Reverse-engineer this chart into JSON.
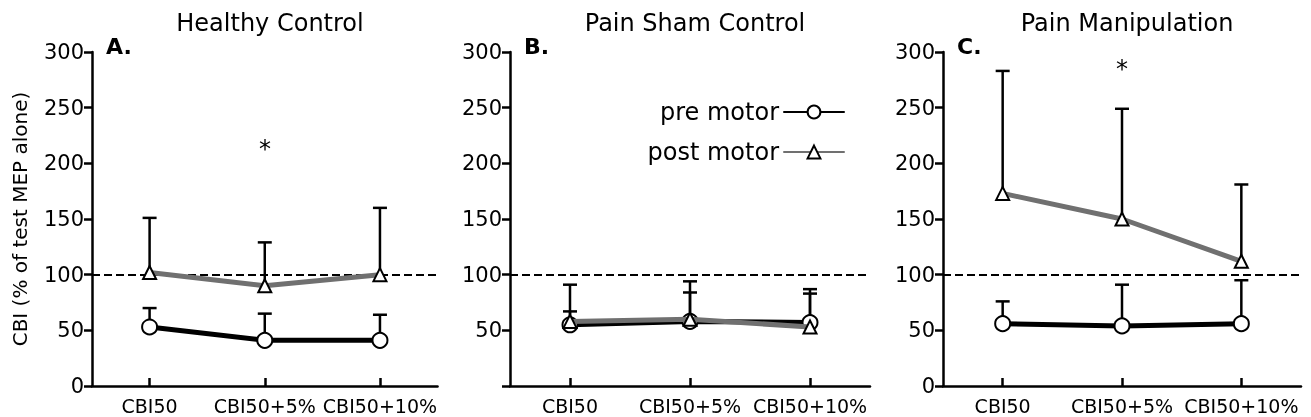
{
  "chart_data": [
    {
      "type": "line",
      "title": "Healthy Control",
      "ylabel": "CBI (% of test MEP alone)",
      "categories": [
        "CBI50",
        "CBI50+5%",
        "CBI50+10%"
      ],
      "ylim": [
        0,
        300
      ],
      "yticks": [
        0,
        50,
        100,
        150,
        200,
        250,
        300
      ],
      "legend": false,
      "line_style": "solid",
      "series": [
        {
          "color": "#000000",
          "marker": "circle",
          "values": [
            53,
            41,
            41
          ],
          "errors": [
            [
              53,
              70
            ],
            [
              41,
              65
            ],
            [
              41,
              64
            ]
          ]
        },
        {
          "color": "#707070",
          "marker": "triangle",
          "values": [
            102,
            90,
            100
          ],
          "errors": [
            [
              102,
              151
            ],
            [
              90,
              129
            ],
            [
              100,
              160
            ]
          ]
        }
      ],
      "ref_lines": [
        {
          "axis": "y",
          "value": 100,
          "line_style": "dashed",
          "color": "#000000"
        }
      ],
      "annotations": [
        "A.",
        "*"
      ]
    },
    {
      "type": "line",
      "title": "Pain Sham Control",
      "categories": [
        "CBI50",
        "CBI50+5%",
        "CBI50+10%"
      ],
      "ylim": [
        0,
        300
      ],
      "yticks": [
        {
          "value": 0,
          "label": null
        },
        50,
        100,
        150,
        200,
        250,
        300
      ],
      "legend": "top right",
      "line_style": "solid",
      "series": [
        {
          "name": "pre motor",
          "color": "#000000",
          "marker": "circle",
          "values": [
            55,
            58,
            57
          ],
          "errors": [
            [
              55,
              67
            ],
            [
              58,
              84
            ],
            [
              57,
              83
            ]
          ]
        },
        {
          "name": "post motor",
          "color": "#707070",
          "marker": "triangle",
          "values": [
            58,
            60,
            53
          ],
          "errors": [
            [
              58,
              91
            ],
            [
              60,
              94
            ],
            [
              53,
              87
            ]
          ]
        }
      ],
      "ref_lines": [
        {
          "axis": "y",
          "value": 100,
          "line_style": "dashed",
          "color": "#000000"
        }
      ],
      "annotations": [
        "B."
      ]
    },
    {
      "type": "line",
      "title": "Pain Manipulation",
      "categories": [
        "CBI50",
        "CBI50+5%",
        "CBI50+10%"
      ],
      "ylim": [
        0,
        300
      ],
      "yticks": [
        0,
        50,
        100,
        150,
        200,
        250,
        300
      ],
      "legend": false,
      "line_style": "solid",
      "series": [
        {
          "color": "#000000",
          "marker": "circle",
          "values": [
            56,
            54,
            56
          ],
          "errors": [
            [
              56,
              76
            ],
            [
              54,
              91
            ],
            [
              56,
              95
            ]
          ]
        },
        {
          "color": "#707070",
          "marker": "triangle",
          "values": [
            173,
            150,
            112
          ],
          "errors": [
            [
              173,
              283
            ],
            [
              150,
              249
            ],
            [
              112,
              181
            ]
          ]
        }
      ],
      "ref_lines": [
        {
          "axis": "y",
          "value": 100,
          "line_style": "dashed",
          "color": "#000000"
        }
      ],
      "annotations": [
        "C.",
        "*"
      ]
    }
  ]
}
